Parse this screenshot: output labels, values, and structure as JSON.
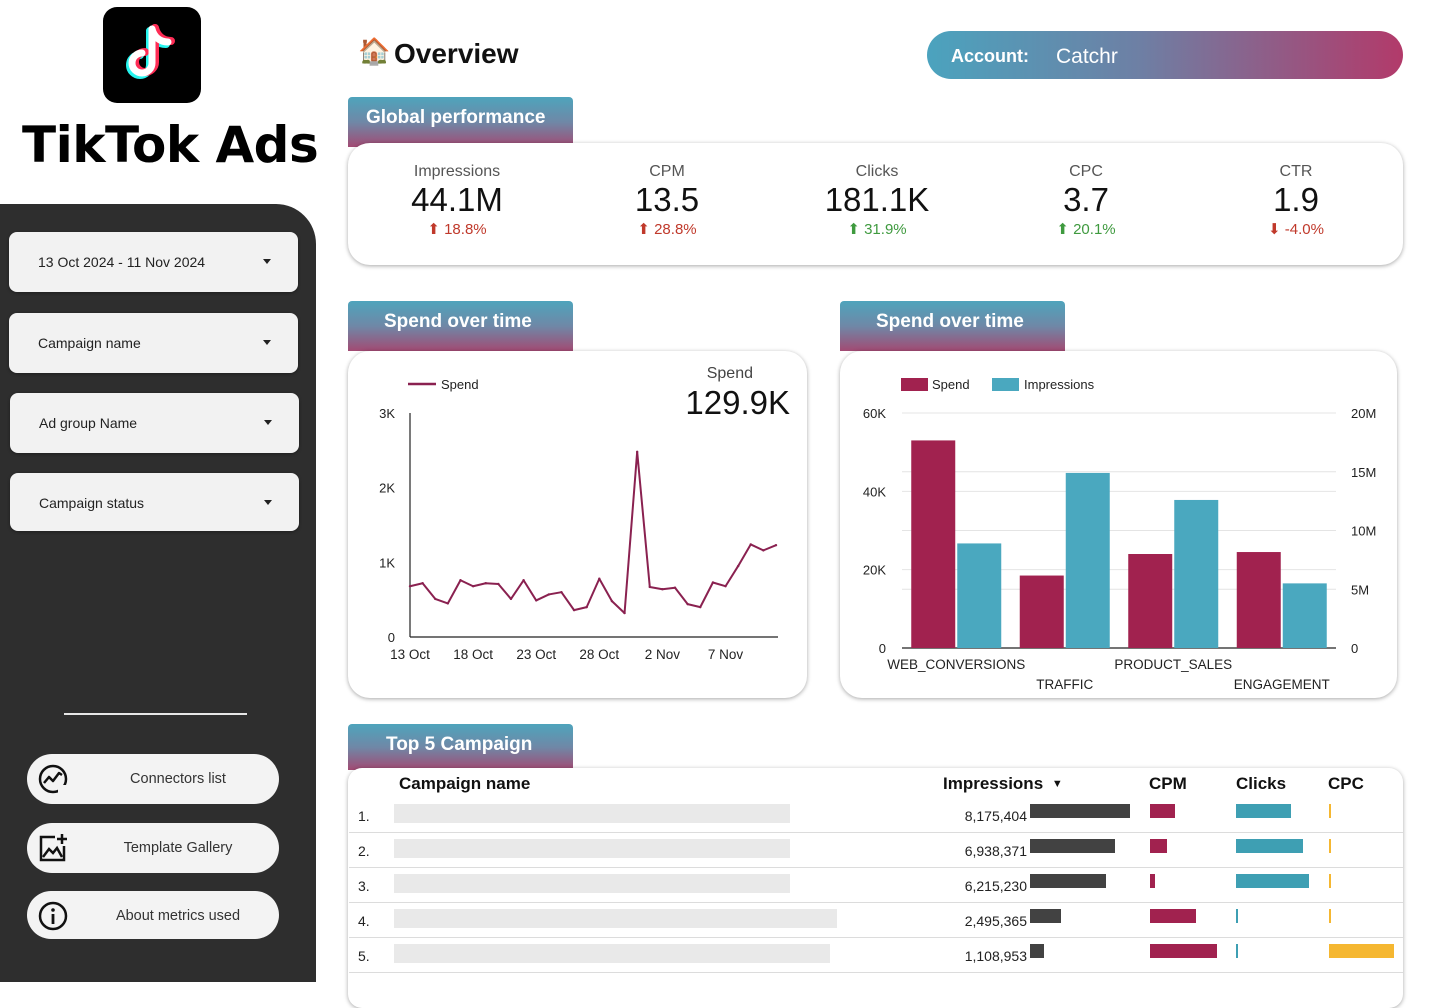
{
  "brand": {
    "name": "TikTok Ads",
    "logo_icon": "tiktok-logo-icon"
  },
  "filters": [
    {
      "label": "13 Oct 2024 - 11 Nov 2024"
    },
    {
      "label": "Campaign name"
    },
    {
      "label": "Ad group Name"
    },
    {
      "label": "Campaign status"
    }
  ],
  "nav": [
    {
      "label": "Connectors list",
      "icon": "chart-circle-icon"
    },
    {
      "label": "Template Gallery",
      "icon": "add-image-icon"
    },
    {
      "label": "About metrics used",
      "icon": "info-icon"
    }
  ],
  "header": {
    "title": "Overview",
    "icon": "house-icon",
    "account_label": "Account:",
    "account_value": "Catchr"
  },
  "sections": {
    "global": "Global performance",
    "spend_line": "Spend over time",
    "spend_bar": "Spend over time",
    "top5": "Top 5 Campaign"
  },
  "kpis": [
    {
      "title": "Impressions",
      "value": "44.1M",
      "delta": "18.8%",
      "dir": "up",
      "color": "#c0392b"
    },
    {
      "title": "CPM",
      "value": "13.5",
      "delta": "28.8%",
      "dir": "up",
      "color": "#c0392b"
    },
    {
      "title": "Clicks",
      "value": "181.1K",
      "delta": "31.9%",
      "dir": "up",
      "color": "#3f9a3f"
    },
    {
      "title": "CPC",
      "value": "3.7",
      "delta": "20.1%",
      "dir": "up",
      "color": "#3f9a3f"
    },
    {
      "title": "CTR",
      "value": "1.9",
      "delta": "-4.0%",
      "dir": "down",
      "color": "#c0392b"
    }
  ],
  "chart_data": [
    {
      "type": "line",
      "legend": [
        "Spend"
      ],
      "kpi_label": "Spend",
      "kpi_value": "129.9K",
      "x_tick_labels": [
        "13 Oct",
        "18 Oct",
        "23 Oct",
        "28 Oct",
        "2 Nov",
        "7 Nov"
      ],
      "y_tick_labels": [
        "0",
        "1K",
        "2K",
        "3K"
      ],
      "ylim": [
        0,
        3000
      ],
      "series": [
        {
          "name": "Spend",
          "color": "#8a2150",
          "x": [
            "13 Oct",
            "14 Oct",
            "15 Oct",
            "16 Oct",
            "17 Oct",
            "18 Oct",
            "19 Oct",
            "20 Oct",
            "21 Oct",
            "22 Oct",
            "23 Oct",
            "24 Oct",
            "25 Oct",
            "26 Oct",
            "27 Oct",
            "28 Oct",
            "29 Oct",
            "30 Oct",
            "31 Oct",
            "1 Nov",
            "2 Nov",
            "3 Nov",
            "4 Nov",
            "5 Nov",
            "6 Nov",
            "7 Nov",
            "8 Nov",
            "9 Nov",
            "10 Nov",
            "11 Nov"
          ],
          "values": [
            680,
            720,
            510,
            450,
            760,
            680,
            720,
            710,
            510,
            760,
            490,
            570,
            600,
            360,
            400,
            780,
            480,
            320,
            2480,
            670,
            640,
            660,
            440,
            400,
            730,
            680,
            950,
            1240,
            1160,
            1230
          ]
        }
      ]
    },
    {
      "type": "bar",
      "categories": [
        "WEB_CONVERSIONS",
        "TRAFFIC",
        "PRODUCT_SALES",
        "ENGAGEMENT"
      ],
      "series": [
        {
          "name": "Spend",
          "axis": "left",
          "color": "#a1224f",
          "values": [
            53000,
            18500,
            24000,
            24500
          ]
        },
        {
          "name": "Impressions",
          "axis": "right",
          "color": "#4aa8bf",
          "values": [
            8900000,
            14900000,
            12600000,
            5500000
          ]
        }
      ],
      "y_left_tick_labels": [
        "0",
        "20K",
        "40K",
        "60K"
      ],
      "y_right_tick_labels": [
        "0",
        "5M",
        "10M",
        "15M",
        "20M"
      ],
      "ylim_left": [
        0,
        60000
      ],
      "ylim_right": [
        0,
        20000000
      ],
      "legend": [
        "Spend",
        "Impressions"
      ]
    }
  ],
  "table": {
    "headers": {
      "campaign": "Campaign name",
      "impressions": "Impressions",
      "cpm": "CPM",
      "clicks": "Clicks",
      "cpc": "CPC"
    },
    "sort_icon": "sort-desc-icon",
    "rows": [
      {
        "num": "1.",
        "impressions": "8,175,404",
        "imp_frac": 1.0,
        "cpm_frac": 0.37,
        "clicks_frac": 0.76,
        "cpc_frac": 0.03
      },
      {
        "num": "2.",
        "impressions": "6,938,371",
        "imp_frac": 0.85,
        "cpm_frac": 0.25,
        "clicks_frac": 0.92,
        "cpc_frac": 0.03
      },
      {
        "num": "3.",
        "impressions": "6,215,230",
        "imp_frac": 0.76,
        "cpm_frac": 0.07,
        "clicks_frac": 1.0,
        "cpc_frac": 0.03
      },
      {
        "num": "4.",
        "impressions": "2,495,365",
        "imp_frac": 0.31,
        "cpm_frac": 0.68,
        "clicks_frac": 0.03,
        "cpc_frac": 0.03
      },
      {
        "num": "5.",
        "impressions": "1,108,953",
        "imp_frac": 0.14,
        "cpm_frac": 1.0,
        "clicks_frac": 0.03,
        "cpc_frac": 1.0
      }
    ]
  },
  "colors": {
    "imp_bar": "#424242",
    "cpm_bar": "#a1224f",
    "clicks_bar": "#3e9fb3",
    "cpc_bar": "#f5b731"
  }
}
